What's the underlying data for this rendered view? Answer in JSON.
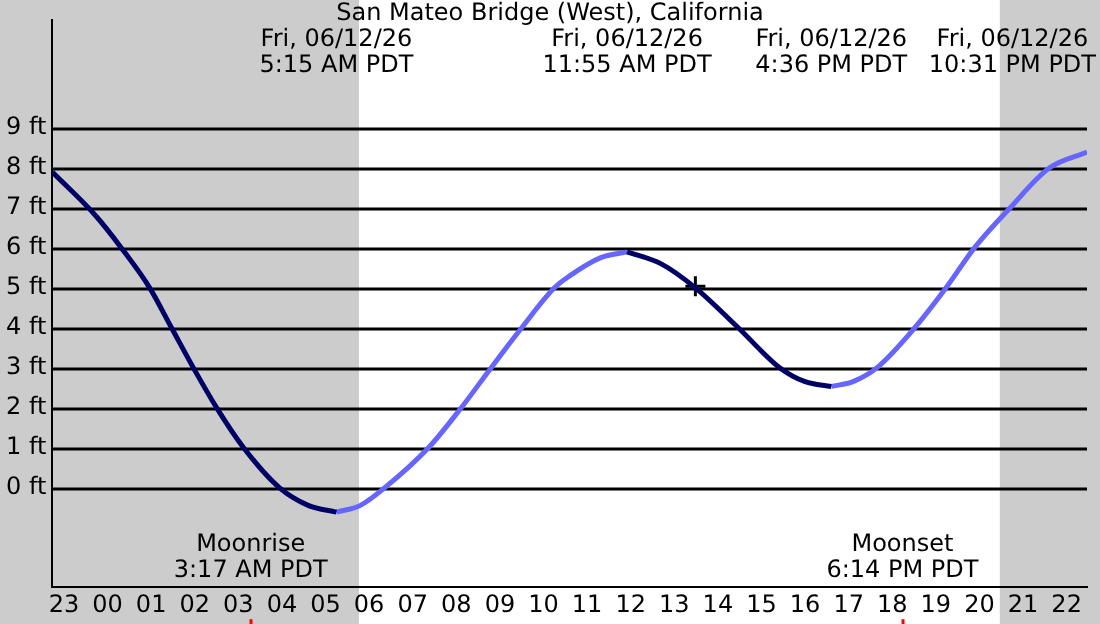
{
  "chart_data": {
    "type": "line",
    "title": "San Mateo Bridge (West), California",
    "xlim": [
      "--06-11T22:44",
      "--06-12T22:28"
    ],
    "xticks": [
      {
        "value": "--06-11T23:00",
        "label": "23"
      },
      {
        "value": "--06-12T00:00",
        "label": "00"
      },
      {
        "value": "--06-12T01:00",
        "label": "01"
      },
      {
        "value": "--06-12T02:00",
        "label": "02"
      },
      {
        "value": "--06-12T03:00",
        "label": "03"
      },
      {
        "value": "--06-12T04:00",
        "label": "04"
      },
      {
        "value": "--06-12T05:00",
        "label": "05"
      },
      {
        "value": "--06-12T06:00",
        "label": "06"
      },
      {
        "value": "--06-12T07:00",
        "label": "07"
      },
      {
        "value": "--06-12T08:00",
        "label": "08"
      },
      {
        "value": "--06-12T09:00",
        "label": "09"
      },
      {
        "value": "--06-12T10:00",
        "label": "10"
      },
      {
        "value": "--06-12T11:00",
        "label": "11"
      },
      {
        "value": "--06-12T12:00",
        "label": "12"
      },
      {
        "value": "--06-12T13:00",
        "label": "13"
      },
      {
        "value": "--06-12T14:00",
        "label": "14"
      },
      {
        "value": "--06-12T15:00",
        "label": "15"
      },
      {
        "value": "--06-12T16:00",
        "label": "16"
      },
      {
        "value": "--06-12T17:00",
        "label": "17"
      },
      {
        "value": "--06-12T18:00",
        "label": "18"
      },
      {
        "value": "--06-12T19:00",
        "label": "19"
      },
      {
        "value": "--06-12T20:00",
        "label": "20"
      },
      {
        "value": "--06-12T21:00",
        "label": "21"
      },
      {
        "value": "--06-12T22:00",
        "label": "22"
      }
    ],
    "ylim": [
      -2.5,
      11.7
    ],
    "yticks": [
      {
        "value": 0,
        "label": "0 ft"
      },
      {
        "value": 1,
        "label": "1 ft"
      },
      {
        "value": 2,
        "label": "2 ft"
      },
      {
        "value": 3,
        "label": "3 ft"
      },
      {
        "value": 4,
        "label": "4 ft"
      },
      {
        "value": 5,
        "label": "5 ft"
      },
      {
        "value": 6,
        "label": "6 ft"
      },
      {
        "value": 7,
        "label": "7 ft"
      },
      {
        "value": 8,
        "label": "8 ft"
      },
      {
        "value": 9,
        "label": "9 ft"
      }
    ],
    "grid": "y",
    "legend": false,
    "marker": "none",
    "line_style": "solid",
    "series": [
      {
        "color": "#000066",
        "x": [
          "--06-11T22:44",
          "--06-11T23:44",
          "--06-12T00:19",
          "--06-12T00:58",
          "--06-12T01:28",
          "--06-12T01:58",
          "--06-12T02:30",
          "--06-12T03:07",
          "--06-12T03:56",
          "--06-12T04:36",
          "--06-12T05:15",
          "--06-12T08:00",
          "--06-12T11:55",
          "--06-12T12:42",
          "--06-12T13:29",
          "--06-12T14:28",
          "--06-12T15:25",
          "--06-12T16:00",
          "--06-12T16:36"
        ],
        "values": [
          7.9,
          6.8,
          6,
          5,
          4,
          3,
          2,
          1,
          0,
          -0.45,
          -0.62,
          null,
          5.9,
          5.6,
          5,
          4,
          3,
          2.65,
          2.53
        ]
      },
      {
        "color": "#6666ff",
        "x": [
          "--06-12T05:15",
          "--06-12T05:48",
          "--06-12T06:22",
          "--06-12T07:22",
          "--06-12T08:07",
          "--06-12T08:48",
          "--06-12T09:30",
          "--06-12T10:15",
          "--06-12T10:36",
          "--06-12T11:18",
          "--06-12T11:55",
          "--06-12T14:00",
          "--06-12T16:36",
          "--06-12T17:06",
          "--06-12T17:39",
          "--06-12T18:31",
          "--06-12T19:14",
          "--06-12T19:53",
          "--06-12T20:42",
          "--06-12T21:36",
          "--06-12T22:28"
        ],
        "values": [
          -0.62,
          -0.45,
          0,
          1,
          2,
          3,
          4,
          5,
          5.3,
          5.75,
          5.9,
          null,
          2.53,
          2.65,
          3,
          4,
          5,
          6,
          7,
          8,
          8.4
        ]
      },
      {
        "type": "scatter",
        "marker": "cross",
        "color": "#000000",
        "x": [
          "--06-12T13:29"
        ],
        "values": [
          5.04
        ]
      }
    ],
    "bands": [
      {
        "axis": "x",
        "from": "--06-11T22:44",
        "to": "--06-12T05:46",
        "color": "#cccccc"
      },
      {
        "axis": "x",
        "from": "--06-12T20:28",
        "to": "--06-12T22:28",
        "color": "#cccccc"
      }
    ],
    "ref_lines": [
      {
        "axis": "x",
        "value": "--06-12T03:17",
        "label": "Moonrise\n3:17 AM PDT",
        "color": "#ff0000"
      },
      {
        "axis": "x",
        "value": "--06-12T18:14",
        "label": "Moonset\n6:14 PM PDT",
        "color": "#ff0000"
      }
    ],
    "annotations": [
      "Fri, 06/12/26\n5:15 AM PDT",
      "Fri, 06/12/26\n11:55 AM PDT",
      "Fri, 06/12/26\n4:36 PM PDT",
      "Fri, 06/12/26\n10:31 PM PDT"
    ]
  }
}
